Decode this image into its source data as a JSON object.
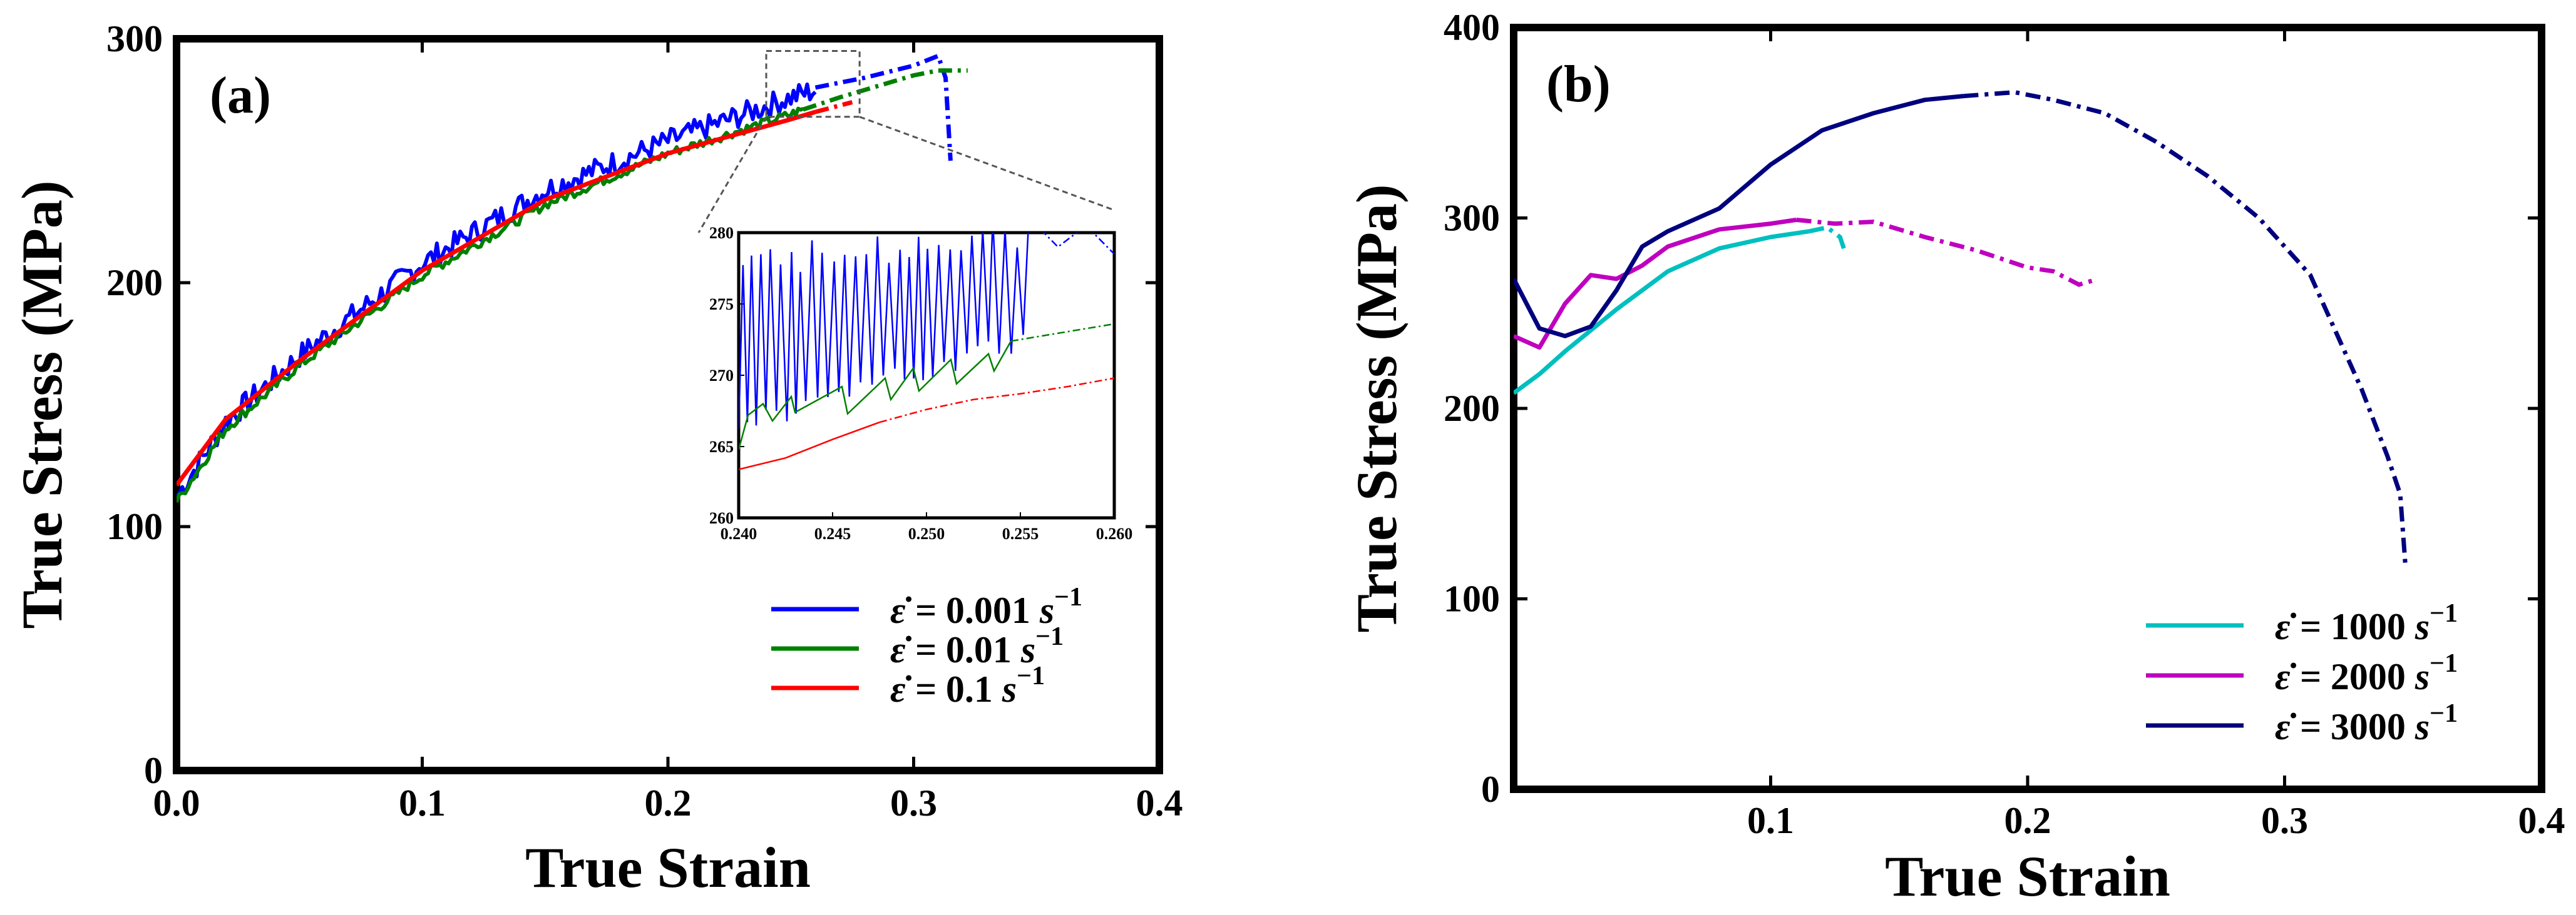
{
  "chart_data": [
    {
      "type": "line",
      "panel_label": "(a)",
      "xlabel": "True Strain",
      "ylabel": "True Stress (MPa)",
      "xlim": [
        0.0,
        0.4
      ],
      "ylim": [
        0,
        300
      ],
      "xticks": [
        "0.0",
        "0.1",
        "0.2",
        "0.3",
        "0.4"
      ],
      "yticks": [
        "0",
        "100",
        "200",
        "300"
      ],
      "legend_position": "lower-right",
      "series": [
        {
          "name": "0.001",
          "legend_prefix": "ε̇ = ",
          "legend_value": "0.001",
          "legend_unit": "s",
          "legend_exp": "−1",
          "color": "#0000ff",
          "noise": 5,
          "x": [
            0.0,
            0.02,
            0.05,
            0.1,
            0.15,
            0.2,
            0.25,
            0.26
          ],
          "y": [
            112,
            143,
            170,
            208,
            238,
            258,
            276,
            279
          ],
          "dashed_x": [
            0.26,
            0.28,
            0.3,
            0.31,
            0.313,
            0.315
          ],
          "dashed_y": [
            280,
            284,
            289,
            293,
            284,
            250
          ]
        },
        {
          "name": "0.01",
          "legend_prefix": "ε̇ =   ",
          "legend_value": "0.01",
          "legend_unit": "s",
          "legend_exp": "−1",
          "color": "#008000",
          "noise": 2,
          "x": [
            0.0,
            0.02,
            0.05,
            0.1,
            0.15,
            0.2,
            0.25,
            0.255
          ],
          "y": [
            110,
            140,
            166,
            203,
            232,
            253,
            269,
            271
          ],
          "dashed_x": [
            0.255,
            0.27,
            0.29,
            0.3,
            0.31,
            0.322
          ],
          "dashed_y": [
            271,
            276,
            282,
            285,
            287,
            287
          ]
        },
        {
          "name": "0.1",
          "legend_prefix": "ε̇ =    ",
          "legend_value": "0.1",
          "legend_unit": "s",
          "legend_exp": "−1",
          "color": "#ff0000",
          "noise": 0,
          "x": [
            0.0,
            0.02,
            0.05,
            0.1,
            0.15,
            0.2,
            0.25,
            0.26
          ],
          "y": [
            117,
            144,
            168,
            205,
            234,
            253,
            267,
            270
          ],
          "dashed_x": [
            0.26,
            0.275
          ],
          "dashed_y": [
            270,
            274
          ]
        }
      ],
      "inset": {
        "type": "line",
        "xlim": [
          0.24,
          0.26
        ],
        "ylim": [
          260,
          280
        ],
        "xticks": [
          "0.240",
          "0.245",
          "0.250",
          "0.255",
          "0.260"
        ],
        "yticks": [
          "260",
          "265",
          "270",
          "275",
          "280"
        ],
        "series": [
          {
            "name": "0.001",
            "color": "#0000ff",
            "oscillation": {
              "x_start": 0.24,
              "x_end": 0.2555,
              "low": [
                266.5,
                272.5
              ],
              "high": [
                278,
                280
              ]
            },
            "dashed_x": [
              0.2555,
              0.257,
              0.2585,
              0.26
            ],
            "dashed_y": [
              281,
              279,
              280.5,
              278.5
            ]
          },
          {
            "name": "0.01",
            "color": "#008000",
            "x": [
              0.24,
              0.2405,
              0.2413,
              0.2418,
              0.2428,
              0.243,
              0.2455,
              0.2458,
              0.2478,
              0.2481,
              0.2493,
              0.2496,
              0.2513,
              0.2516,
              0.2533,
              0.2536,
              0.2545
            ],
            "y": [
              264.8,
              267.2,
              268.0,
              266.8,
              268.5,
              267.4,
              269.2,
              267.3,
              269.8,
              268.3,
              270.5,
              268.9,
              271.1,
              269.4,
              271.5,
              270.3,
              272.4
            ],
            "dashed_x": [
              0.2545,
              0.26
            ],
            "dashed_y": [
              272.4,
              273.6
            ]
          },
          {
            "name": "0.1",
            "color": "#ff0000",
            "x": [
              0.24,
              0.2425,
              0.245,
              0.2475
            ],
            "y": [
              263.4,
              264.2,
              265.5,
              266.7
            ],
            "dashed_x": [
              0.2475,
              0.25,
              0.2525,
              0.255,
              0.2575,
              0.26
            ],
            "dashed_y": [
              266.7,
              267.6,
              268.3,
              268.7,
              269.2,
              269.8
            ]
          }
        ]
      }
    },
    {
      "type": "line",
      "panel_label": "(b)",
      "xlabel": "True Strain",
      "ylabel": "True Stress (MPa)",
      "xlim": [
        0.0,
        0.4
      ],
      "ylim": [
        0,
        400
      ],
      "xticks": [
        "0.1",
        "0.2",
        "0.3",
        "0.4"
      ],
      "xtick_values": [
        0.1,
        0.2,
        0.3,
        0.4
      ],
      "yticks": [
        "0",
        "100",
        "200",
        "300",
        "400"
      ],
      "legend_position": "lower-right",
      "series": [
        {
          "name": "1000",
          "legend_prefix": "ε̇ = ",
          "legend_value": "1000",
          "legend_unit": "s",
          "legend_exp": "−1",
          "color": "#00bfbf",
          "x": [
            0.0,
            0.01,
            0.02,
            0.04,
            0.06,
            0.08,
            0.1,
            0.115
          ],
          "y": [
            208,
            218,
            230,
            252,
            272,
            284,
            290,
            293
          ],
          "dashed_x": [
            0.115,
            0.122,
            0.127,
            0.129
          ],
          "dashed_y": [
            293,
            295,
            290,
            282
          ]
        },
        {
          "name": "2000",
          "legend_prefix": "ε̇ = ",
          "legend_value": "2000",
          "legend_unit": "s",
          "legend_exp": "−1",
          "color": "#bf00bf",
          "x": [
            0.0,
            0.01,
            0.02,
            0.03,
            0.04,
            0.05,
            0.06,
            0.08,
            0.1,
            0.11
          ],
          "y": [
            238,
            232,
            255,
            270,
            268,
            275,
            285,
            294,
            297,
            299
          ],
          "dashed_x": [
            0.11,
            0.125,
            0.14,
            0.16,
            0.18,
            0.2,
            0.21,
            0.22,
            0.225
          ],
          "dashed_y": [
            299,
            297,
            298,
            290,
            283,
            274,
            272,
            265,
            267
          ]
        },
        {
          "name": "3000",
          "legend_prefix": "ε̇ = ",
          "legend_value": "3000",
          "legend_unit": "s",
          "legend_exp": "−1",
          "color": "#00007f",
          "x": [
            0.0,
            0.01,
            0.02,
            0.03,
            0.04,
            0.05,
            0.06,
            0.08,
            0.1,
            0.12,
            0.14,
            0.16,
            0.175
          ],
          "y": [
            268,
            242,
            238,
            243,
            262,
            285,
            293,
            305,
            328,
            346,
            355,
            362,
            364
          ],
          "dashed_x": [
            0.175,
            0.195,
            0.21,
            0.23,
            0.25,
            0.27,
            0.29,
            0.31,
            0.32,
            0.33,
            0.34,
            0.345,
            0.347
          ],
          "dashed_y": [
            364,
            366,
            362,
            355,
            340,
            322,
            300,
            270,
            240,
            210,
            175,
            155,
            118
          ]
        }
      ]
    }
  ]
}
